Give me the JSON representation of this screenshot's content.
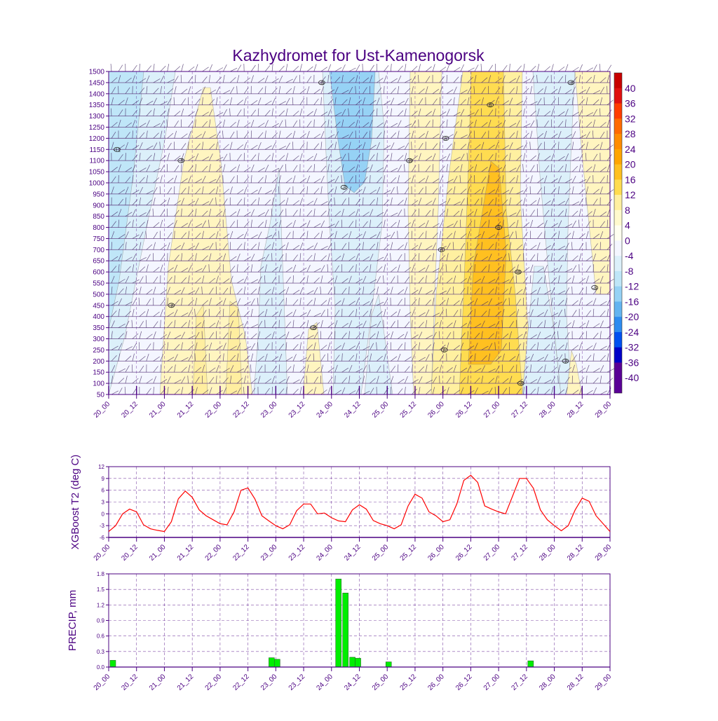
{
  "title": "Kazhydromet for Ust-Kamenogorsk",
  "time_labels": [
    "20_00",
    "20_12",
    "21_00",
    "21_12",
    "22_00",
    "22_12",
    "23_00",
    "23_12",
    "24_00",
    "24_12",
    "25_00",
    "25_12",
    "26_00",
    "26_12",
    "27_00",
    "27_12",
    "28_00",
    "28_12",
    "29_00"
  ],
  "colors": {
    "axis": "#4b0082",
    "grid": "#4b0082",
    "t2_line": "#ff0000",
    "precip_bar": "#00ee00",
    "contour_line": "#777777",
    "barb": "#3a1f5c"
  },
  "chart_data": [
    {
      "type": "heatmap",
      "title": "Kazhydromet for Ust-Kamenogorsk",
      "xlabel": "",
      "ylabel": "",
      "y_levels": [
        1500,
        1450,
        1400,
        1350,
        1300,
        1250,
        1200,
        1150,
        1100,
        1050,
        1000,
        950,
        900,
        850,
        800,
        750,
        700,
        650,
        600,
        550,
        500,
        450,
        400,
        350,
        300,
        250,
        200,
        150,
        100,
        50
      ],
      "ylim": [
        50,
        1500
      ],
      "xlim": [
        0,
        18
      ],
      "x_categories": "time_labels",
      "color_scale": {
        "labels": [
          "40",
          "36",
          "32",
          "28",
          "24",
          "20",
          "16",
          "12",
          "8",
          "4",
          "0",
          "-4",
          "-8",
          "-12",
          "-16",
          "-20",
          "-24",
          "-32",
          "-36",
          "-40"
        ],
        "colors": [
          "#c80000",
          "#e01010",
          "#ff3c00",
          "#ff6a00",
          "#ff8c00",
          "#ffa500",
          "#ffc020",
          "#ffdc50",
          "#fff0a0",
          "#fffacd",
          "#fffff0",
          "#f4f6ff",
          "#dcf0fa",
          "#bfe6f8",
          "#96d2f5",
          "#64b4f0",
          "#2e8cf0",
          "#0050f0",
          "#0000c8",
          "#5a0096"
        ]
      },
      "contour_labels": [
        {
          "t": 0.3,
          "p": 1150,
          "text": "-12"
        },
        {
          "t": 2.6,
          "p": 1100,
          "text": "-8"
        },
        {
          "t": 2.25,
          "p": 450,
          "text": "-8"
        },
        {
          "t": 7.65,
          "p": 1450,
          "text": "-8"
        },
        {
          "t": 8.45,
          "p": 980,
          "text": "-8"
        },
        {
          "t": 7.35,
          "p": 350,
          "text": "-8"
        },
        {
          "t": 10.8,
          "p": 1100,
          "text": "-8"
        },
        {
          "t": 12.1,
          "p": 1200,
          "text": "8"
        },
        {
          "t": 11.95,
          "p": 700,
          "text": "8"
        },
        {
          "t": 12.05,
          "p": 250,
          "text": "8"
        },
        {
          "t": 13.7,
          "p": 1350,
          "text": "8"
        },
        {
          "t": 14.0,
          "p": 800,
          "text": "8"
        },
        {
          "t": 14.7,
          "p": 600,
          "text": "-8"
        },
        {
          "t": 14.8,
          "p": 100,
          "text": "-8"
        },
        {
          "t": 16.6,
          "p": 1450,
          "text": "-8"
        },
        {
          "t": 16.4,
          "p": 200,
          "text": "-8"
        },
        {
          "t": 17.45,
          "p": 530,
          "text": "-8"
        }
      ]
    },
    {
      "type": "line",
      "title": "",
      "xlabel": "",
      "ylabel": "XGBoost T2 (deg C)",
      "ylim": [
        -6,
        12
      ],
      "yticks": [
        -6,
        -3,
        0,
        3,
        6,
        9,
        12
      ],
      "series": [
        {
          "name": "",
          "x": [
            0,
            0.25,
            0.5,
            0.75,
            1,
            1.25,
            1.5,
            1.75,
            2,
            2.25,
            2.5,
            2.75,
            3,
            3.25,
            3.5,
            3.75,
            4,
            4.25,
            4.5,
            4.75,
            5,
            5.25,
            5.5,
            5.75,
            6,
            6.25,
            6.5,
            6.75,
            7,
            7.25,
            7.5,
            7.75,
            8,
            8.25,
            8.5,
            8.75,
            9,
            9.25,
            9.5,
            9.75,
            10,
            10.25,
            10.5,
            10.75,
            11,
            11.25,
            11.5,
            11.75,
            12,
            12.25,
            12.5,
            12.75,
            13,
            13.25,
            13.5,
            13.75,
            14,
            14.25,
            14.5,
            14.75,
            15,
            15.25,
            15.5,
            15.75,
            16,
            16.25,
            16.5,
            16.75,
            17,
            17.25,
            17.5,
            17.75,
            18
          ],
          "values": [
            -4.5,
            -3.0,
            0.0,
            1.2,
            0.5,
            -2.8,
            -3.8,
            -4.2,
            -4.5,
            -2.0,
            3.8,
            5.8,
            4.2,
            1.0,
            -0.5,
            -1.5,
            -2.5,
            -2.8,
            0.5,
            6.0,
            6.6,
            3.8,
            -0.5,
            -1.8,
            -3.0,
            -3.8,
            -2.8,
            0.8,
            2.5,
            2.5,
            0.0,
            0.2,
            -1.0,
            -1.8,
            -2.0,
            1.0,
            2.3,
            1.2,
            -1.7,
            -2.5,
            -3.0,
            -3.8,
            -2.8,
            2.0,
            5.0,
            4.0,
            0.5,
            -0.5,
            -2.0,
            -1.5,
            2.5,
            8.5,
            9.8,
            8.0,
            2.0,
            1.2,
            0.5,
            0.0,
            4.5,
            9.0,
            9.0,
            6.5,
            1.0,
            -1.5,
            -3.0,
            -4.3,
            -3.0,
            1.0,
            4.0,
            3.2,
            -0.5,
            -2.5,
            -4.5
          ]
        }
      ]
    },
    {
      "type": "bar",
      "title": "",
      "xlabel": "",
      "ylabel": "PRECIP, mm",
      "ylim": [
        0,
        1.8
      ],
      "yticks": [
        0.0,
        0.3,
        0.6,
        0.9,
        1.2,
        1.5,
        1.8
      ],
      "ytick_labels": [
        "0.0",
        "0.3",
        "0.6",
        "0.9",
        "1.2",
        "1.5",
        "1.8"
      ],
      "bars": [
        {
          "t": 0.05,
          "value": 0.13
        },
        {
          "t": 5.75,
          "value": 0.18
        },
        {
          "t": 5.95,
          "value": 0.15
        },
        {
          "t": 8.15,
          "value": 1.7
        },
        {
          "t": 8.4,
          "value": 1.43
        },
        {
          "t": 8.65,
          "value": 0.19
        },
        {
          "t": 8.85,
          "value": 0.17
        },
        {
          "t": 9.95,
          "value": 0.1
        },
        {
          "t": 15.05,
          "value": 0.12
        }
      ]
    }
  ]
}
